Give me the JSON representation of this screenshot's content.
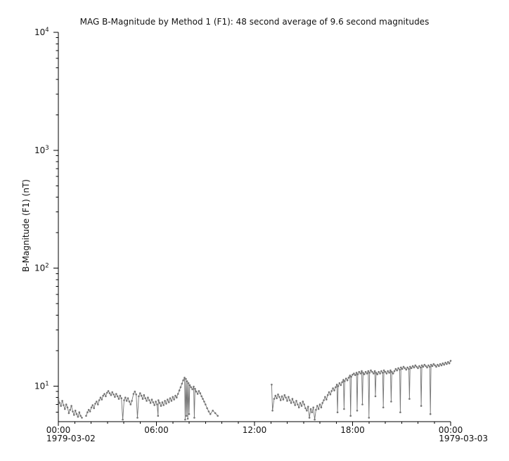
{
  "chart_data": {
    "type": "line",
    "title": "MAG  B-Magnitude by Method 1 (F1): 48 second average of 9.6 second magnitudes",
    "ylabel": "B-Magnitude (F1) (nT)",
    "series_color": "#757575",
    "gap_threshold_hours": 0.2,
    "x_axis": {
      "start_label": "1979-03-02",
      "end_label": "1979-03-03",
      "xlim_hours": [
        0,
        24
      ],
      "minor_step_hours": 1,
      "ticks": [
        {
          "t": 0,
          "label": "00:00"
        },
        {
          "t": 6,
          "label": "06:00"
        },
        {
          "t": 12,
          "label": "12:00"
        },
        {
          "t": 18,
          "label": "18:00"
        },
        {
          "t": 24,
          "label": "00:00"
        }
      ]
    },
    "y_axis": {
      "scale": "log",
      "ylim": [
        5,
        10000
      ],
      "major_ticks": [
        {
          "value": 10,
          "mantissa": "10",
          "exponent": "1"
        },
        {
          "value": 100,
          "mantissa": "10",
          "exponent": "2"
        },
        {
          "value": 1000,
          "mantissa": "10",
          "exponent": "3"
        },
        {
          "value": 10000,
          "mantissa": "10",
          "exponent": "4"
        }
      ]
    },
    "points": [
      [
        0.0,
        7.8
      ],
      [
        0.08,
        7.2
      ],
      [
        0.16,
        6.8
      ],
      [
        0.24,
        7.5
      ],
      [
        0.32,
        6.9
      ],
      [
        0.4,
        6.4
      ],
      [
        0.48,
        7.0
      ],
      [
        0.56,
        6.6
      ],
      [
        0.64,
        5.9
      ],
      [
        0.72,
        6.3
      ],
      [
        0.8,
        6.8
      ],
      [
        0.88,
        6.1
      ],
      [
        0.96,
        5.7
      ],
      [
        1.04,
        6.2
      ],
      [
        1.12,
        5.8
      ],
      [
        1.2,
        5.5
      ],
      [
        1.28,
        6.0
      ],
      [
        1.36,
        5.6
      ],
      [
        1.44,
        5.4
      ],
      [
        1.7,
        5.6
      ],
      [
        1.78,
        6.0
      ],
      [
        1.86,
        6.3
      ],
      [
        1.94,
        6.1
      ],
      [
        2.02,
        6.6
      ],
      [
        2.1,
        6.9
      ],
      [
        2.18,
        6.5
      ],
      [
        2.26,
        7.1
      ],
      [
        2.34,
        7.4
      ],
      [
        2.42,
        7.0
      ],
      [
        2.5,
        7.6
      ],
      [
        2.58,
        8.0
      ],
      [
        2.66,
        7.7
      ],
      [
        2.74,
        8.3
      ],
      [
        2.82,
        8.6
      ],
      [
        2.9,
        8.2
      ],
      [
        2.98,
        8.8
      ],
      [
        3.06,
        9.1
      ],
      [
        3.14,
        8.7
      ],
      [
        3.22,
        8.4
      ],
      [
        3.3,
        8.9
      ],
      [
        3.38,
        8.5
      ],
      [
        3.46,
        8.1
      ],
      [
        3.54,
        8.6
      ],
      [
        3.62,
        8.2
      ],
      [
        3.7,
        7.8
      ],
      [
        3.78,
        8.3
      ],
      [
        3.86,
        7.9
      ],
      [
        3.94,
        5.2
      ],
      [
        4.02,
        7.6
      ],
      [
        4.1,
        8.0
      ],
      [
        4.18,
        7.5
      ],
      [
        4.26,
        7.9
      ],
      [
        4.34,
        7.4
      ],
      [
        4.42,
        7.0
      ],
      [
        4.5,
        7.5
      ],
      [
        4.6,
        8.6
      ],
      [
        4.68,
        9.0
      ],
      [
        4.76,
        8.5
      ],
      [
        4.84,
        5.4
      ],
      [
        4.92,
        8.2
      ],
      [
        5.0,
        8.7
      ],
      [
        5.08,
        8.3
      ],
      [
        5.16,
        7.8
      ],
      [
        5.24,
        8.4
      ],
      [
        5.32,
        7.9
      ],
      [
        5.4,
        7.5
      ],
      [
        5.48,
        8.0
      ],
      [
        5.56,
        7.6
      ],
      [
        5.64,
        7.2
      ],
      [
        5.72,
        7.7
      ],
      [
        5.8,
        7.3
      ],
      [
        5.88,
        6.9
      ],
      [
        5.96,
        7.4
      ],
      [
        6.04,
        7.0
      ],
      [
        6.1,
        5.6
      ],
      [
        6.12,
        7.6
      ],
      [
        6.2,
        7.2
      ],
      [
        6.28,
        6.8
      ],
      [
        6.36,
        7.3
      ],
      [
        6.44,
        6.9
      ],
      [
        6.52,
        7.5
      ],
      [
        6.6,
        7.1
      ],
      [
        6.68,
        7.7
      ],
      [
        6.76,
        7.3
      ],
      [
        6.84,
        7.9
      ],
      [
        6.92,
        7.5
      ],
      [
        7.0,
        8.1
      ],
      [
        7.08,
        7.7
      ],
      [
        7.16,
        8.3
      ],
      [
        7.24,
        8.0
      ],
      [
        7.32,
        8.6
      ],
      [
        7.4,
        9.2
      ],
      [
        7.48,
        9.8
      ],
      [
        7.56,
        10.5
      ],
      [
        7.64,
        11.2
      ],
      [
        7.72,
        11.8
      ],
      [
        7.76,
        5.2
      ],
      [
        7.8,
        11.5
      ],
      [
        7.84,
        5.6
      ],
      [
        7.88,
        11.0
      ],
      [
        7.92,
        5.3
      ],
      [
        7.96,
        10.6
      ],
      [
        8.0,
        5.8
      ],
      [
        8.04,
        10.2
      ],
      [
        8.12,
        9.8
      ],
      [
        8.2,
        9.4
      ],
      [
        8.28,
        9.9
      ],
      [
        8.32,
        5.4
      ],
      [
        8.36,
        9.5
      ],
      [
        8.44,
        9.0
      ],
      [
        8.52,
        8.6
      ],
      [
        8.6,
        9.1
      ],
      [
        8.68,
        8.7
      ],
      [
        8.76,
        8.2
      ],
      [
        8.84,
        7.8
      ],
      [
        8.92,
        7.4
      ],
      [
        9.0,
        7.0
      ],
      [
        9.1,
        6.5
      ],
      [
        9.2,
        6.1
      ],
      [
        9.3,
        5.8
      ],
      [
        9.45,
        6.2
      ],
      [
        9.6,
        5.9
      ],
      [
        9.75,
        5.6
      ],
      [
        13.05,
        10.3
      ],
      [
        13.1,
        6.2
      ],
      [
        13.2,
        7.8
      ],
      [
        13.28,
        8.3
      ],
      [
        13.36,
        7.9
      ],
      [
        13.44,
        8.5
      ],
      [
        13.52,
        8.1
      ],
      [
        13.6,
        7.6
      ],
      [
        13.68,
        8.2
      ],
      [
        13.76,
        7.7
      ],
      [
        13.84,
        8.4
      ],
      [
        13.92,
        8.0
      ],
      [
        14.0,
        7.5
      ],
      [
        14.08,
        8.1
      ],
      [
        14.16,
        7.6
      ],
      [
        14.24,
        7.2
      ],
      [
        14.32,
        7.8
      ],
      [
        14.4,
        7.3
      ],
      [
        14.48,
        6.9
      ],
      [
        14.56,
        7.5
      ],
      [
        14.64,
        7.0
      ],
      [
        14.72,
        6.6
      ],
      [
        14.8,
        7.2
      ],
      [
        14.88,
        6.8
      ],
      [
        14.96,
        7.4
      ],
      [
        15.04,
        7.0
      ],
      [
        15.12,
        6.5
      ],
      [
        15.2,
        6.2
      ],
      [
        15.28,
        6.7
      ],
      [
        15.36,
        5.4
      ],
      [
        15.44,
        6.4
      ],
      [
        15.52,
        6.0
      ],
      [
        15.6,
        6.6
      ],
      [
        15.68,
        5.2
      ],
      [
        15.76,
        6.3
      ],
      [
        15.84,
        6.8
      ],
      [
        15.92,
        6.4
      ],
      [
        16.0,
        7.0
      ],
      [
        16.08,
        6.6
      ],
      [
        16.16,
        7.2
      ],
      [
        16.24,
        7.6
      ],
      [
        16.32,
        8.1
      ],
      [
        16.4,
        7.7
      ],
      [
        16.48,
        8.4
      ],
      [
        16.56,
        8.9
      ],
      [
        16.64,
        8.5
      ],
      [
        16.72,
        9.1
      ],
      [
        16.8,
        9.6
      ],
      [
        16.88,
        9.2
      ],
      [
        16.96,
        9.8
      ],
      [
        17.04,
        10.3
      ],
      [
        17.08,
        6.0
      ],
      [
        17.12,
        10.0
      ],
      [
        17.2,
        10.6
      ],
      [
        17.28,
        10.2
      ],
      [
        17.36,
        10.8
      ],
      [
        17.44,
        11.3
      ],
      [
        17.48,
        6.4
      ],
      [
        17.52,
        11.0
      ],
      [
        17.6,
        11.6
      ],
      [
        17.68,
        11.2
      ],
      [
        17.76,
        11.8
      ],
      [
        17.84,
        12.3
      ],
      [
        17.88,
        5.6
      ],
      [
        17.92,
        12.0
      ],
      [
        18.0,
        12.5
      ],
      [
        18.08,
        12.8
      ],
      [
        18.16,
        12.4
      ],
      [
        18.24,
        13.0
      ],
      [
        18.28,
        6.2
      ],
      [
        18.32,
        12.6
      ],
      [
        18.4,
        13.2
      ],
      [
        18.48,
        12.8
      ],
      [
        18.56,
        13.4
      ],
      [
        18.6,
        7.0
      ],
      [
        18.64,
        13.0
      ],
      [
        18.72,
        12.6
      ],
      [
        18.8,
        13.2
      ],
      [
        18.88,
        12.8
      ],
      [
        18.96,
        13.4
      ],
      [
        19.0,
        5.4
      ],
      [
        19.04,
        13.0
      ],
      [
        19.12,
        13.6
      ],
      [
        19.2,
        13.2
      ],
      [
        19.28,
        12.8
      ],
      [
        19.36,
        13.4
      ],
      [
        19.4,
        8.2
      ],
      [
        19.44,
        13.0
      ],
      [
        19.52,
        12.6
      ],
      [
        19.6,
        13.2
      ],
      [
        19.68,
        12.8
      ],
      [
        19.76,
        13.4
      ],
      [
        19.84,
        13.0
      ],
      [
        19.88,
        6.6
      ],
      [
        19.92,
        13.6
      ],
      [
        20.0,
        13.2
      ],
      [
        20.08,
        12.8
      ],
      [
        20.16,
        13.4
      ],
      [
        20.24,
        13.0
      ],
      [
        20.32,
        13.6
      ],
      [
        20.36,
        7.4
      ],
      [
        20.4,
        13.2
      ],
      [
        20.48,
        12.8
      ],
      [
        20.56,
        13.4
      ],
      [
        20.64,
        14.0
      ],
      [
        20.72,
        13.6
      ],
      [
        20.8,
        14.2
      ],
      [
        20.88,
        13.8
      ],
      [
        20.92,
        6.0
      ],
      [
        20.96,
        14.4
      ],
      [
        21.04,
        14.0
      ],
      [
        21.12,
        14.6
      ],
      [
        21.2,
        14.2
      ],
      [
        21.28,
        13.8
      ],
      [
        21.36,
        14.4
      ],
      [
        21.44,
        14.0
      ],
      [
        21.48,
        7.8
      ],
      [
        21.52,
        14.6
      ],
      [
        21.6,
        14.2
      ],
      [
        21.68,
        14.8
      ],
      [
        21.76,
        14.4
      ],
      [
        21.84,
        15.0
      ],
      [
        21.92,
        14.6
      ],
      [
        22.0,
        14.2
      ],
      [
        22.08,
        14.8
      ],
      [
        22.16,
        14.4
      ],
      [
        22.2,
        6.8
      ],
      [
        22.24,
        15.0
      ],
      [
        22.32,
        14.6
      ],
      [
        22.4,
        15.2
      ],
      [
        22.48,
        14.8
      ],
      [
        22.56,
        14.4
      ],
      [
        22.64,
        15.0
      ],
      [
        22.72,
        14.6
      ],
      [
        22.76,
        5.8
      ],
      [
        22.8,
        15.2
      ],
      [
        22.88,
        14.8
      ],
      [
        22.96,
        15.4
      ],
      [
        23.04,
        15.0
      ],
      [
        23.12,
        14.6
      ],
      [
        23.2,
        15.2
      ],
      [
        23.28,
        14.8
      ],
      [
        23.36,
        15.4
      ],
      [
        23.44,
        15.0
      ],
      [
        23.52,
        15.6
      ],
      [
        23.6,
        15.2
      ],
      [
        23.68,
        15.8
      ],
      [
        23.76,
        15.4
      ],
      [
        23.84,
        16.0
      ],
      [
        23.92,
        15.6
      ],
      [
        24.0,
        16.4
      ]
    ]
  }
}
